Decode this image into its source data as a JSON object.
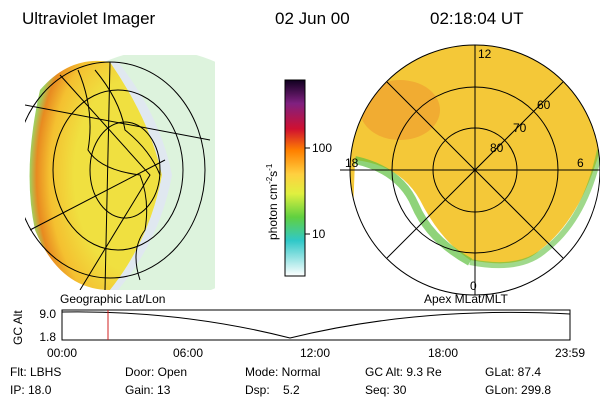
{
  "header": {
    "title": "Ultraviolet Imager",
    "date": "02 Jun 00",
    "time": "02:18:04 UT"
  },
  "colorbar": {
    "label": {
      "base": "photon cm",
      "exp1": "-2",
      "unit2": "s",
      "exp2": "-1"
    },
    "ticks": [
      "100",
      "10"
    ]
  },
  "polar": {
    "mlt_labels": [
      "12",
      "18",
      "6",
      "0"
    ],
    "lat_labels": [
      "60",
      "70",
      "80"
    ]
  },
  "panels": {
    "left": "Geographic Lat/Lon",
    "right": "Apex MLat/MLT"
  },
  "timeline": {
    "axis_label": "GC Alt",
    "y_labels": [
      "9.0",
      "1.8"
    ],
    "x_labels": [
      "00:00",
      "06:00",
      "12:00",
      "18:00",
      "23:59"
    ]
  },
  "info": {
    "rows": [
      [
        "Flt: LBHS",
        "Door: Open",
        "Mode: Normal",
        "GC Alt: 9.3 Re",
        "GLat: 87.4"
      ],
      [
        "IP: 18.0",
        "Gain: 13",
        "Dsp:    5.2",
        "Seq: 30",
        "GLon: 299.8"
      ]
    ]
  }
}
